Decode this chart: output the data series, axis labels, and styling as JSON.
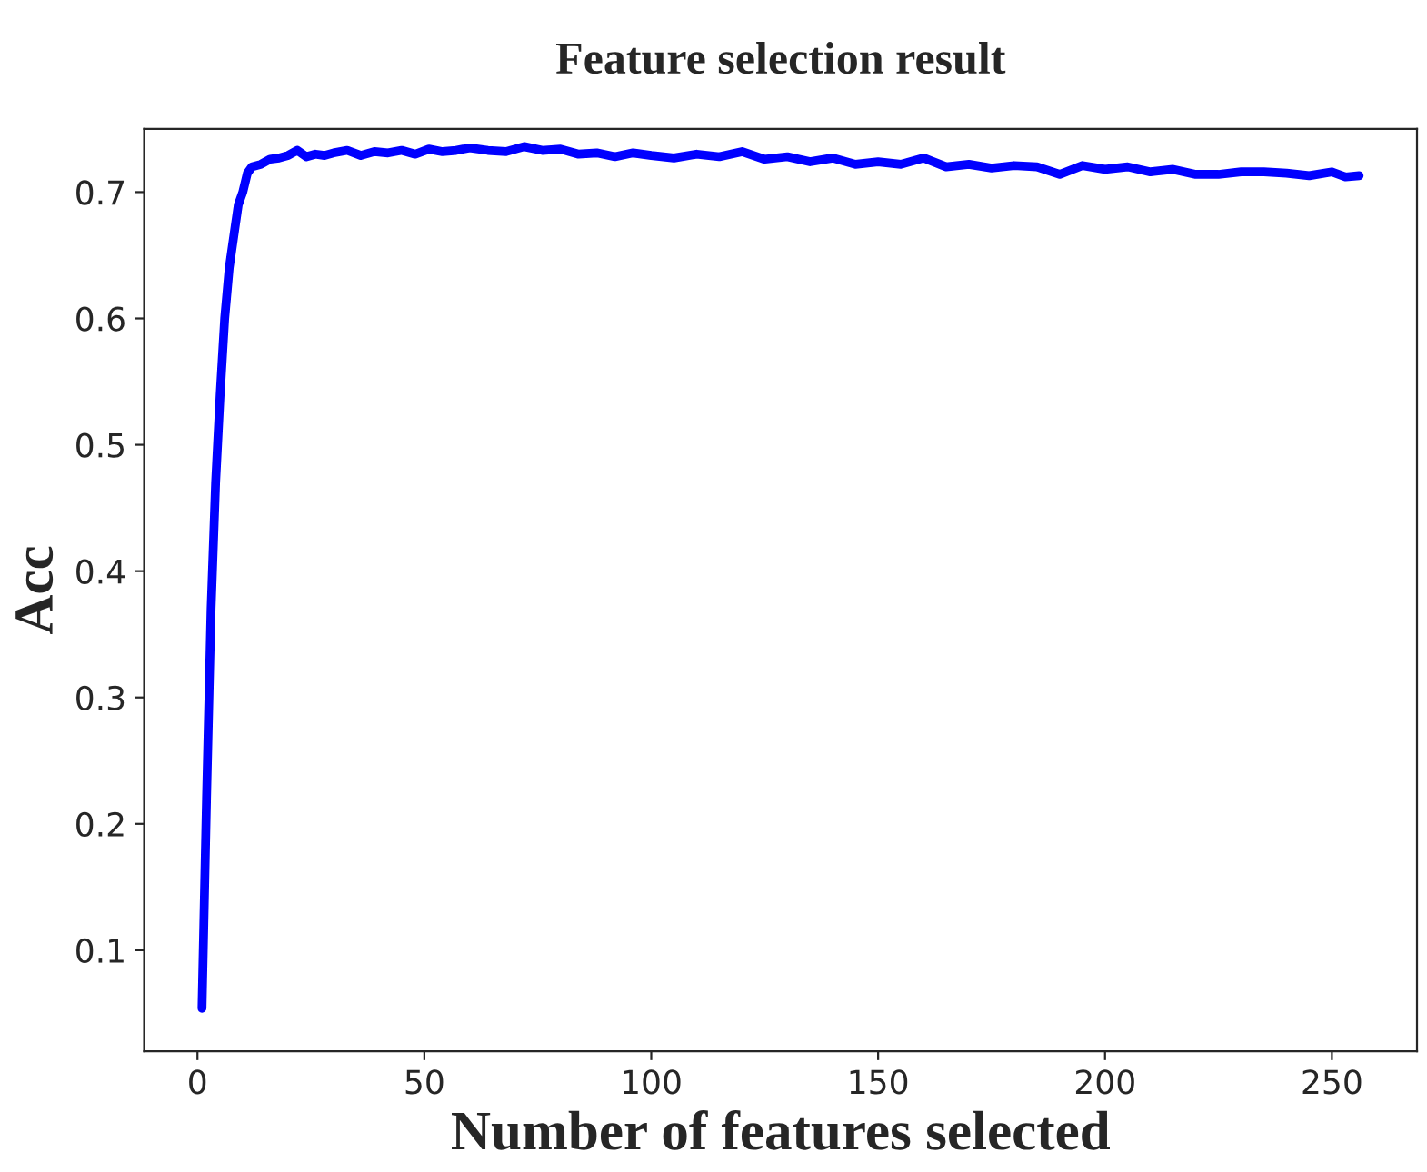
{
  "chart_data": {
    "type": "line",
    "title": "Feature selection result",
    "xlabel": "Number of features selected",
    "ylabel": "Acc",
    "xlim": [
      -11.75,
      268.75
    ],
    "ylim": [
      0.02,
      0.75
    ],
    "xticks": [
      0,
      50,
      100,
      150,
      200,
      250
    ],
    "yticks": [
      0.1,
      0.2,
      0.3,
      0.4,
      0.5,
      0.6,
      0.7
    ],
    "grid": false,
    "marker": "none",
    "line_style": "solid",
    "series": [
      {
        "color": "#0000ff",
        "x": [
          1,
          2,
          3,
          4,
          5,
          6,
          7,
          8,
          9,
          10,
          11,
          12,
          14,
          16,
          18,
          20,
          22,
          24,
          26,
          28,
          30,
          33,
          36,
          39,
          42,
          45,
          48,
          51,
          54,
          57,
          60,
          64,
          68,
          72,
          76,
          80,
          84,
          88,
          92,
          96,
          100,
          105,
          110,
          115,
          120,
          125,
          130,
          135,
          140,
          145,
          150,
          155,
          160,
          165,
          170,
          175,
          180,
          185,
          190,
          195,
          200,
          205,
          210,
          215,
          220,
          225,
          230,
          235,
          240,
          245,
          250,
          253,
          256
        ],
        "values": [
          0.054,
          0.22,
          0.37,
          0.47,
          0.54,
          0.6,
          0.64,
          0.665,
          0.69,
          0.7,
          0.715,
          0.72,
          0.722,
          0.726,
          0.727,
          0.729,
          0.733,
          0.728,
          0.73,
          0.729,
          0.731,
          0.733,
          0.729,
          0.732,
          0.731,
          0.733,
          0.73,
          0.734,
          0.732,
          0.733,
          0.735,
          0.733,
          0.732,
          0.736,
          0.733,
          0.734,
          0.73,
          0.731,
          0.728,
          0.731,
          0.729,
          0.727,
          0.73,
          0.728,
          0.732,
          0.726,
          0.728,
          0.724,
          0.727,
          0.722,
          0.724,
          0.722,
          0.727,
          0.72,
          0.722,
          0.719,
          0.721,
          0.72,
          0.714,
          0.721,
          0.718,
          0.72,
          0.716,
          0.718,
          0.714,
          0.714,
          0.716,
          0.716,
          0.715,
          0.713,
          0.716,
          0.712,
          0.713
        ]
      }
    ]
  }
}
